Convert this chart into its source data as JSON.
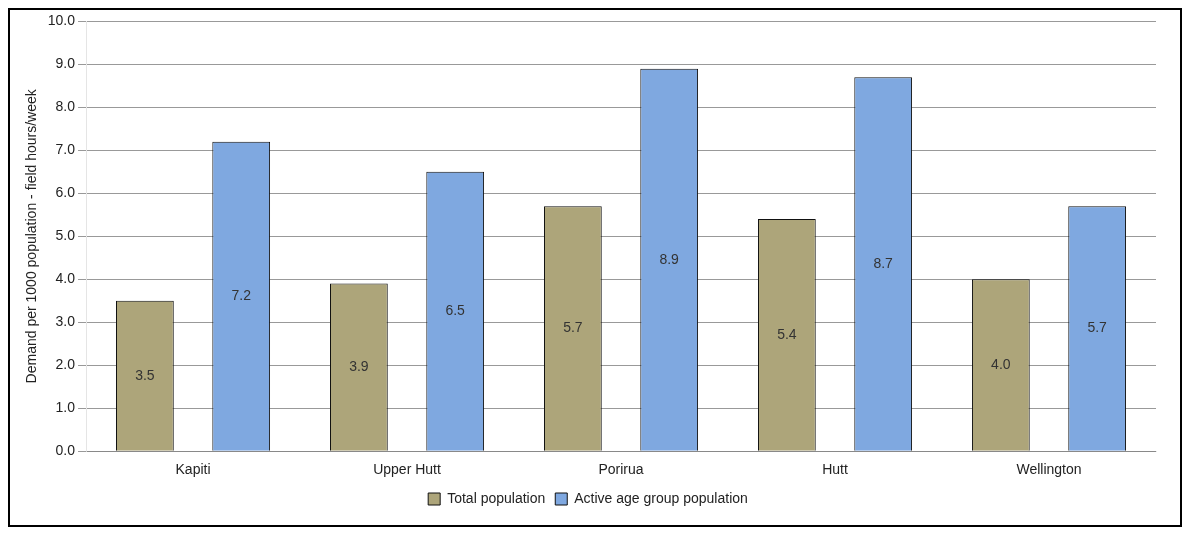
{
  "chart_data": {
    "type": "bar",
    "ylabel": "Demand per 1000 population - field hours/week",
    "categories": [
      "Kapiti",
      "Upper Hutt",
      "Porirua",
      "Hutt",
      "Wellington"
    ],
    "series": [
      {
        "name": "Total population",
        "color": "#ada57a",
        "values": [
          3.5,
          3.9,
          5.7,
          5.4,
          4.0
        ],
        "value_labels": [
          "3.5",
          "3.9",
          "5.7",
          "5.4",
          "4.0"
        ]
      },
      {
        "name": "Active age group population",
        "color": "#7fa8e0",
        "values": [
          7.2,
          6.5,
          8.9,
          8.7,
          5.7
        ],
        "value_labels": [
          "7.2",
          "6.5",
          "8.9",
          "8.7",
          "5.7"
        ]
      }
    ],
    "ylim": [
      0,
      10
    ],
    "yticks": [
      {
        "value": 0,
        "label": "0.0"
      },
      {
        "value": 1,
        "label": "1.0"
      },
      {
        "value": 2,
        "label": "2.0"
      },
      {
        "value": 3,
        "label": "3.0"
      },
      {
        "value": 4,
        "label": "4.0"
      },
      {
        "value": 5,
        "label": "5.0"
      },
      {
        "value": 6,
        "label": "6.0"
      },
      {
        "value": 7,
        "label": "7.0"
      },
      {
        "value": 8,
        "label": "8.0"
      },
      {
        "value": 9,
        "label": "9.0"
      },
      {
        "value": 10,
        "label": "10.0"
      }
    ],
    "grid": "y",
    "legend": "bottom"
  }
}
